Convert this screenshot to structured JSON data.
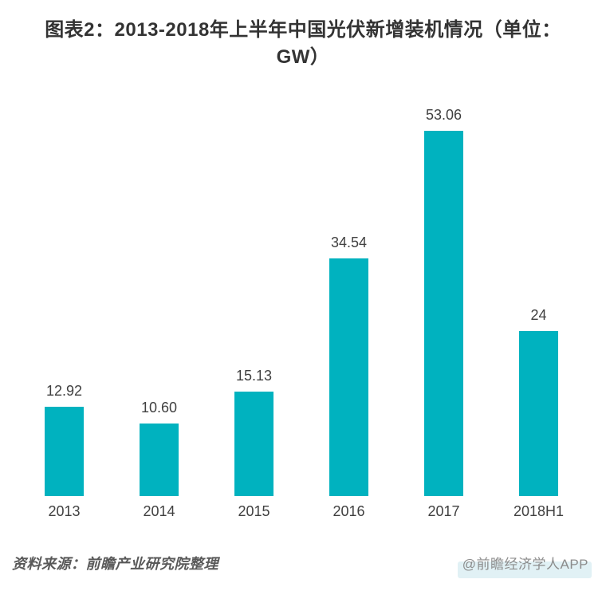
{
  "title": {
    "full": "图表2：2013-2018年上半年中国光伏新增装机情况（单位：GW）",
    "line1": "图表2：2013-2018年上半年中国光伏新增装机情况（单位：",
    "line2": "GW）"
  },
  "chart_data": {
    "type": "bar",
    "title": "图表2：2013-2018年上半年中国光伏新增装机情况（单位：GW）",
    "categories": [
      "2013",
      "2014",
      "2015",
      "2016",
      "2017",
      "2018H1"
    ],
    "values": [
      12.92,
      10.6,
      15.13,
      34.54,
      53.06,
      24
    ],
    "value_labels": [
      "12.92",
      "10.60",
      "15.13",
      "34.54",
      "53.06",
      "24"
    ],
    "xlabel": "",
    "ylabel": "",
    "ylim": [
      0,
      57
    ],
    "grid": false,
    "legend_position": "none",
    "bar_color": "#00b2bf",
    "label_color": "#404040"
  },
  "footer": {
    "source": "资料来源：前瞻产业研究院整理",
    "credit": "@前瞻经济学人APP"
  },
  "colors": {
    "bar": "#00b2bf",
    "title_text": "#333333",
    "axis_label_text": "#404040",
    "source_text": "#595959",
    "credit_text": "#8c8c8c",
    "background": "#ffffff"
  }
}
